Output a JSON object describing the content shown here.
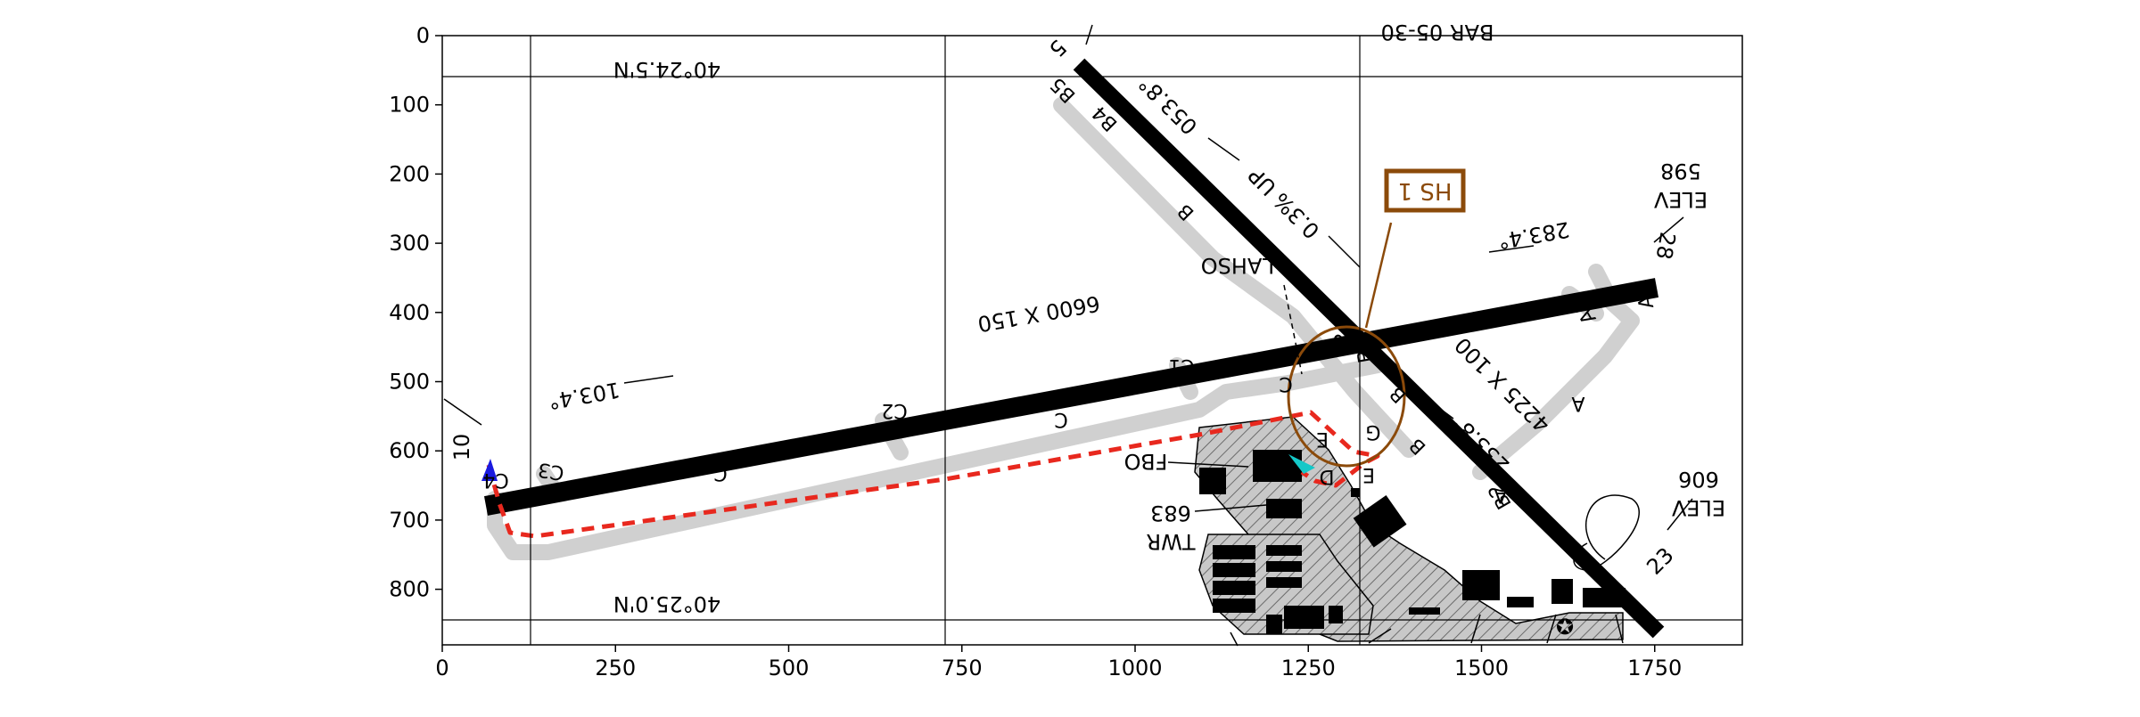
{
  "map": {
    "x_ticks": [
      "0",
      "250",
      "500",
      "750",
      "1000",
      "1250",
      "1500",
      "1750"
    ],
    "y_ticks": [
      "0",
      "100",
      "200",
      "300",
      "400",
      "500",
      "600",
      "700",
      "800"
    ],
    "labels": {
      "lat_top": "40°24.5'N",
      "lat_bottom": "40°25.0'N",
      "top_cut": "BAR 05-30",
      "rwy_10": "10",
      "rwy_28": "28",
      "rwy_5": "5",
      "rwy_23": "23",
      "hdg_103": "103.4°",
      "hdg_283": "283.4°",
      "hdg_053": "053.8°",
      "hdg_233": "233.8°",
      "dim_main": "6600 X 150",
      "dim_cross": "4225 X 100",
      "grade": "0.3% UP",
      "lahso": "LAHSO",
      "hs": "HS 1",
      "elev_right_word": "ELEV",
      "elev_right_val": "598",
      "elev_lower_word": "ELEV",
      "elev_lower_val": "606",
      "fbo": "FBO",
      "tower_word": "TWR",
      "tower_val": "683",
      "star": "✪"
    },
    "taxiways": [
      "C4",
      "C3",
      "C2",
      "C1",
      "C",
      "C",
      "C",
      "B",
      "B",
      "B",
      "B",
      "B3",
      "B4",
      "B5",
      "A",
      "A",
      "A1",
      "A2",
      "B2",
      "E",
      "E",
      "D",
      "G"
    ],
    "colors": {
      "runway": "#000000",
      "taxiway": "#d0d0d0",
      "route": "#e8281e",
      "hotspot": "#8b4a0a",
      "start_marker": "#1a1adf",
      "end_marker": "#14c8c8"
    }
  }
}
